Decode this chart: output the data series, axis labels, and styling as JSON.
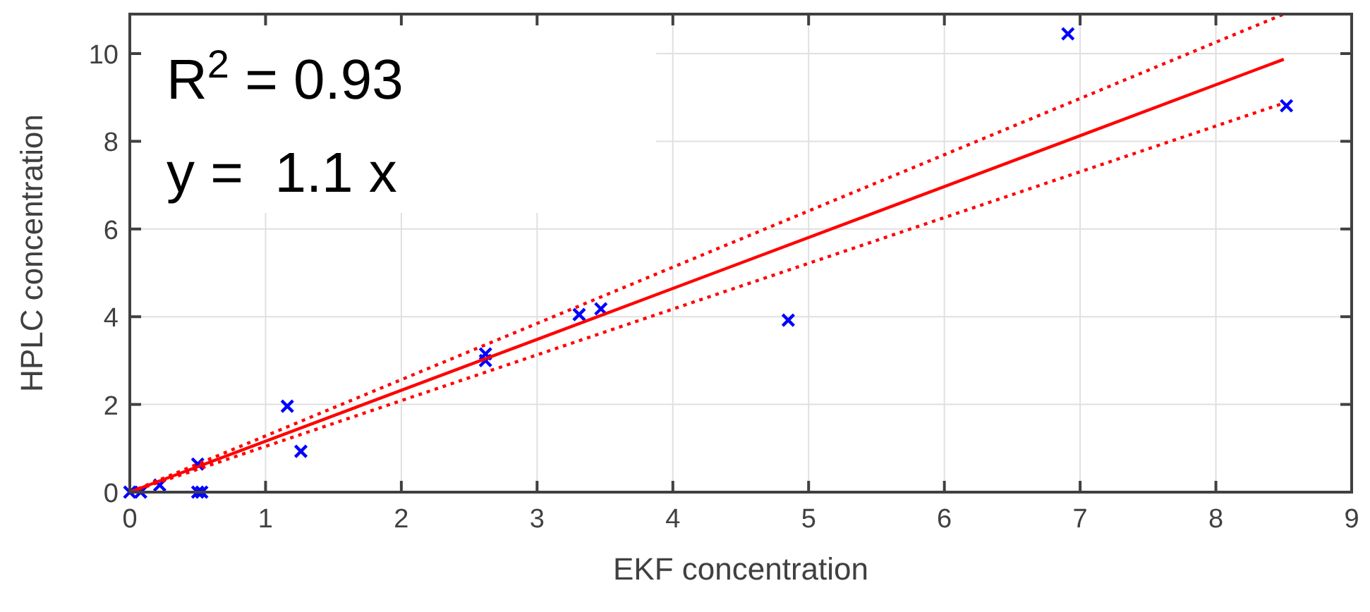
{
  "chart_data": {
    "type": "scatter",
    "xlabel": "EKF concentration",
    "ylabel": "HPLC concentration",
    "xlim": [
      0,
      9
    ],
    "xticks": [
      0,
      1,
      2,
      3,
      4,
      5,
      6,
      7,
      8,
      9
    ],
    "ylim": [
      0,
      10.9
    ],
    "yticks": [
      0,
      2,
      4,
      6,
      8,
      10
    ],
    "grid": true,
    "marker": "cross",
    "annotations": [
      "R$^{2}$ = 0.93",
      "y =  1.1 x"
    ],
    "series": [
      {
        "color": "#0000ff",
        "x": [
          0,
          0.08,
          0.22,
          0.5,
          0.53,
          0.5,
          1.16,
          1.26,
          2.62,
          2.62,
          3.31,
          3.47,
          4.85,
          6.91,
          8.52
        ],
        "values": [
          0,
          0,
          0.16,
          0,
          0,
          0.64,
          1.96,
          0.93,
          3.0,
          3.15,
          4.05,
          4.18,
          3.92,
          10.45,
          8.81
        ]
      },
      {
        "type": "line",
        "color": "#ff0000",
        "line_style": "solid",
        "marker": "none",
        "x": [
          0,
          8.5
        ],
        "values": [
          0,
          9.87
        ]
      },
      {
        "type": "line",
        "color": "#ff0000",
        "line_style": "dotted",
        "marker": "none",
        "x": [
          0,
          8.5
        ],
        "values": [
          0,
          10.9
        ]
      },
      {
        "type": "line",
        "color": "#ff0000",
        "line_style": "dotted",
        "marker": "none",
        "x": [
          0,
          8.5
        ],
        "values": [
          0,
          8.87
        ]
      }
    ]
  }
}
